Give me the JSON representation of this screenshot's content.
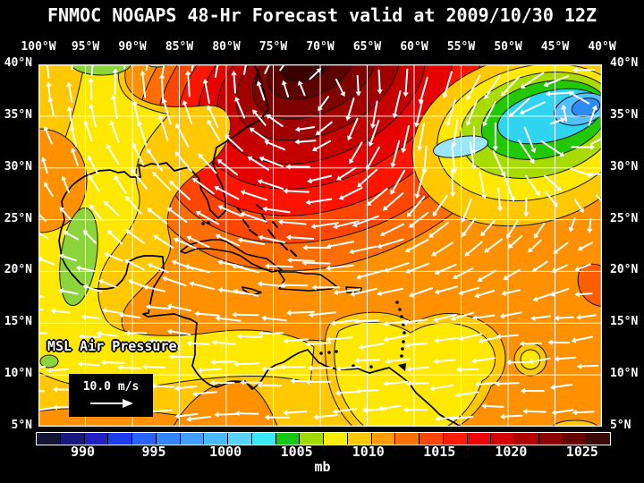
{
  "title": "FNMOC NOGAPS 48-Hr Forecast valid at 2009/10/30 12Z",
  "map": {
    "field_label": "MSL Air Pressure",
    "wind_scale_label": "10.0 m/s",
    "lon_labels": [
      "100°W",
      "95°W",
      "90°W",
      "85°W",
      "80°W",
      "75°W",
      "70°W",
      "65°W",
      "60°W",
      "55°W",
      "50°W",
      "45°W",
      "40°W"
    ],
    "lat_labels_left": [
      "40°N",
      "35°N",
      "30°N",
      "25°N",
      "20°N",
      "15°N",
      "10°N",
      "5°N"
    ],
    "lat_labels_right": [
      "40°N",
      "35°N",
      "30°N",
      "25°N",
      "20°N",
      "15°N",
      "10°N",
      "5°N"
    ],
    "palette": {
      "base": "#ff9100",
      "high_rings": [
        "#ff6e00",
        "#ff4600",
        "#ff1400",
        "#e60000",
        "#c40000",
        "#a00000",
        "#7e0000",
        "#5c0000",
        "#3a0000"
      ],
      "low_rings": [
        "#ffc800",
        "#ffe800",
        "#a8dc00",
        "#22c800",
        "#2fd4f0"
      ],
      "low_core_west": "#9be6ff",
      "low_core_east": "#52c0ff",
      "low_core_east_inner": "#2e8bf0",
      "left_band": "#ffc800",
      "yellow": "#ffe800",
      "green_left": "#8cd43c",
      "red_patch_east": "#ff5e00",
      "grid": "#ffffff",
      "coast": "#000000",
      "arrow": "#ffffff",
      "contour_line": "#181818"
    }
  },
  "colorbar": {
    "unit": "mb",
    "tick_labels": [
      "990",
      "995",
      "1000",
      "1005",
      "1010",
      "1015",
      "1020",
      "1025"
    ],
    "tick_positions_pct": [
      8.2,
      20.6,
      33.1,
      45.5,
      58.0,
      70.4,
      82.9,
      95.3
    ],
    "segment_colors": [
      "#141436",
      "#18187e",
      "#2020c4",
      "#1c3cf0",
      "#2a62ff",
      "#3584ff",
      "#3fa0ff",
      "#4cb8ff",
      "#5cd2ff",
      "#3ce8f8",
      "#16c816",
      "#a0d800",
      "#f8ec00",
      "#ffc800",
      "#ff9c00",
      "#ff7000",
      "#ff4400",
      "#ff1c00",
      "#f00000",
      "#d20000",
      "#b00000",
      "#8c0000",
      "#640000",
      "#3a0a0a"
    ]
  },
  "chart_data": {
    "type": "contour-map",
    "title": "FNMOC NOGAPS 48-Hr Forecast valid at 2009/10/30 12Z",
    "field": "MSL Air Pressure",
    "unit": "mb",
    "lon_range_deg_w": [
      100,
      40
    ],
    "lat_range_deg_n": [
      5,
      40
    ],
    "colorbar_ticks_mb": [
      990,
      995,
      1000,
      1005,
      1010,
      1015,
      1020,
      1025
    ],
    "wind_reference_ms": 10.0,
    "features": [
      {
        "type": "high",
        "approx_lon_w": 72,
        "approx_lat_n": 39,
        "approx_value_mb": 1026
      },
      {
        "type": "low",
        "approx_lon_w": 43,
        "approx_lat_n": 35,
        "approx_value_mb": 996
      },
      {
        "type": "secondary_low_cell",
        "approx_lon_w": 55,
        "approx_lat_n": 31,
        "approx_value_mb": 1000
      },
      {
        "type": "trade_easterlies",
        "lat_band_n": [
          5,
          20
        ]
      }
    ]
  }
}
